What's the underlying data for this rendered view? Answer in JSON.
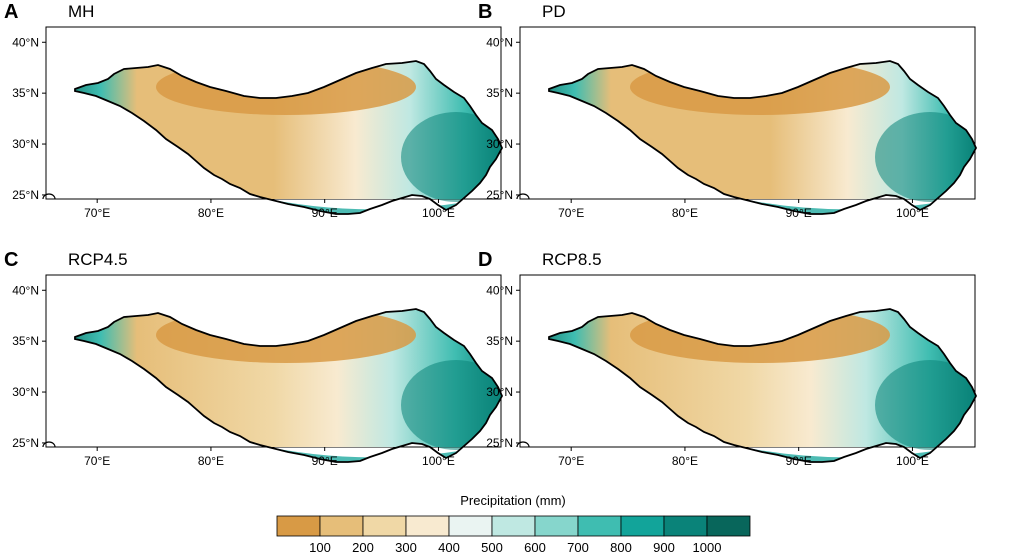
{
  "figure": {
    "colorbar": {
      "title": "Precipitation (mm)",
      "tick_labels": [
        "100",
        "200",
        "300",
        "400",
        "500",
        "600",
        "700",
        "800",
        "900",
        "1000"
      ],
      "colors": [
        "#d89a45",
        "#e6be79",
        "#f0d8a6",
        "#f8ead0",
        "#eaf4f2",
        "#bfe8e2",
        "#86d6cc",
        "#3fbdb1",
        "#12a49a",
        "#0a8379",
        "#08665b"
      ]
    },
    "axes": {
      "lat_labels": [
        "40°N",
        "35°N",
        "30°N",
        "25°N"
      ],
      "lon_labels": [
        "70°E",
        "80°E",
        "90°E",
        "100°E"
      ],
      "lat_values": [
        40,
        35,
        30,
        25
      ],
      "lon_values": [
        70,
        80,
        90,
        100
      ]
    },
    "panels": [
      {
        "letter": "A",
        "title": "MH"
      },
      {
        "letter": "B",
        "title": "PD"
      },
      {
        "letter": "C",
        "title": "RCP4.5"
      },
      {
        "letter": "D",
        "title": "RCP8.5"
      }
    ]
  }
}
